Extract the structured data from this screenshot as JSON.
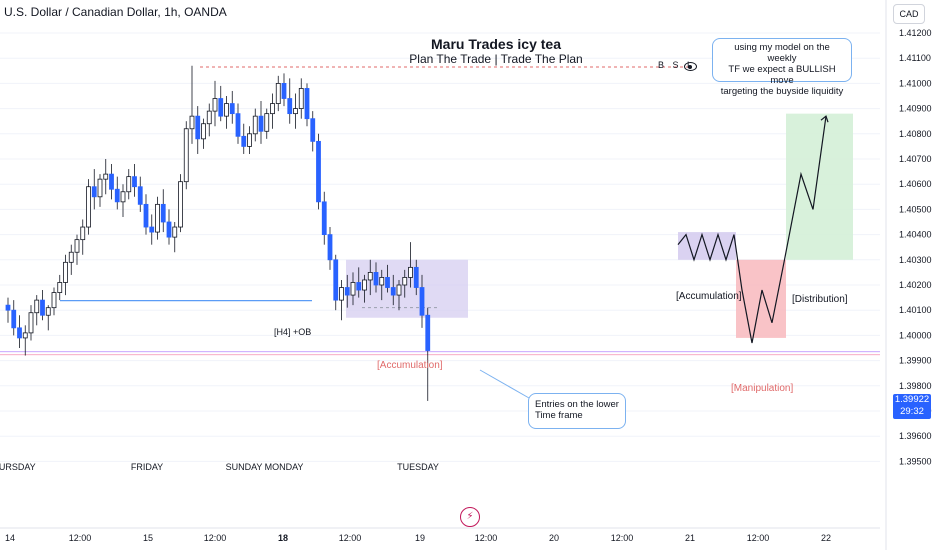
{
  "header": {
    "symbol_title": "U.S. Dollar / Canadian Dollar, 1h, OANDA",
    "currency_button": "CAD"
  },
  "idea": {
    "title": "Maru Trades icy tea",
    "subtitle": "Plan The Trade | Trade The Plan"
  },
  "annotations": {
    "bsl": "B S L",
    "top_callout": [
      "using my model on the weekly",
      "TF  we expect a BULLISH move",
      "targeting the buyside liquidity"
    ],
    "entry_callout": [
      "Entries on the lower",
      "Time frame"
    ],
    "ob_label": "[H4] +OB",
    "accumulation_mid": "[Accumulation]",
    "accumulation_side": "[Accumulation]",
    "manipulation": "[Manipulation]",
    "distribution": "[Distribution]"
  },
  "price_tag": {
    "price": "1.39922",
    "countdown": "29:32"
  },
  "colors": {
    "bull_candle": "#ffffff",
    "bear_candle": "#2962ff",
    "accumulation_zone": "#d6cdf0",
    "manipulation_zone": "#f8b9bd",
    "distribution_zone": "#d4efd7",
    "ob_line": "#5b9cf6",
    "accent_red": "#e06a6a"
  },
  "chart_data": {
    "type": "candlestick",
    "title": "U.S. Dollar / Canadian Dollar, 1h, OANDA",
    "y_axis_labels": [
      "1.41200",
      "1.41100",
      "1.41000",
      "1.40900",
      "1.40800",
      "1.40700",
      "1.40600",
      "1.40500",
      "1.40400",
      "1.40300",
      "1.40200",
      "1.40100",
      "1.40000",
      "1.39900",
      "1.39800",
      "1.39700",
      "1.39600",
      "1.39500"
    ],
    "ylim": [
      1.3949,
      1.4128
    ],
    "x_axis_labels": [
      "14",
      "12:00",
      "15",
      "12:00",
      "18",
      "12:00",
      "19",
      "12:00",
      "20",
      "12:00",
      "21",
      "12:00",
      "22"
    ],
    "session_labels": [
      "HURSDAY",
      "FRIDAY",
      "SUNDAY",
      "MONDAY",
      "TUESDAY"
    ],
    "last_price": 1.39922,
    "levels": {
      "bsl": 1.41065,
      "ob": 1.40138,
      "price_line": 1.39935
    },
    "ohlc": [
      [
        1.4012,
        1.4015,
        1.4005,
        1.401
      ],
      [
        1.401,
        1.4014,
        1.4,
        1.4003
      ],
      [
        1.4003,
        1.4008,
        1.3995,
        1.3999
      ],
      [
        1.3999,
        1.4004,
        1.3992,
        1.4001
      ],
      [
        1.4001,
        1.4012,
        1.3998,
        1.4009
      ],
      [
        1.4009,
        1.4016,
        1.4004,
        1.4014
      ],
      [
        1.4014,
        1.4018,
        1.4006,
        1.4008
      ],
      [
        1.4008,
        1.4012,
        1.4002,
        1.4011
      ],
      [
        1.4011,
        1.4019,
        1.4008,
        1.4017
      ],
      [
        1.4017,
        1.4024,
        1.4014,
        1.4021
      ],
      [
        1.4021,
        1.4032,
        1.4016,
        1.4029
      ],
      [
        1.4029,
        1.4036,
        1.4024,
        1.4033
      ],
      [
        1.4033,
        1.404,
        1.4028,
        1.4038
      ],
      [
        1.4038,
        1.4046,
        1.4032,
        1.4043
      ],
      [
        1.4043,
        1.4062,
        1.404,
        1.4059
      ],
      [
        1.4059,
        1.4066,
        1.405,
        1.4055
      ],
      [
        1.4055,
        1.4064,
        1.4051,
        1.4062
      ],
      [
        1.4062,
        1.407,
        1.4056,
        1.4064
      ],
      [
        1.4064,
        1.4068,
        1.4054,
        1.4058
      ],
      [
        1.4058,
        1.4063,
        1.405,
        1.4053
      ],
      [
        1.4053,
        1.406,
        1.4047,
        1.4057
      ],
      [
        1.4057,
        1.4066,
        1.4054,
        1.4063
      ],
      [
        1.4063,
        1.4068,
        1.4055,
        1.4059
      ],
      [
        1.4059,
        1.4063,
        1.4049,
        1.4052
      ],
      [
        1.4052,
        1.4056,
        1.404,
        1.4043
      ],
      [
        1.4043,
        1.4048,
        1.4036,
        1.4041
      ],
      [
        1.4041,
        1.4055,
        1.4038,
        1.4052
      ],
      [
        1.4052,
        1.4058,
        1.4041,
        1.4045
      ],
      [
        1.4045,
        1.405,
        1.4036,
        1.4039
      ],
      [
        1.4039,
        1.4045,
        1.4033,
        1.4043
      ],
      [
        1.4043,
        1.4064,
        1.4041,
        1.4061
      ],
      [
        1.4061,
        1.4085,
        1.4058,
        1.4082
      ],
      [
        1.4082,
        1.4107,
        1.4076,
        1.4087
      ],
      [
        1.4087,
        1.4091,
        1.4072,
        1.4078
      ],
      [
        1.4078,
        1.4086,
        1.4074,
        1.4084
      ],
      [
        1.4084,
        1.4092,
        1.4079,
        1.4089
      ],
      [
        1.4089,
        1.4101,
        1.4083,
        1.4094
      ],
      [
        1.4094,
        1.4099,
        1.4085,
        1.4087
      ],
      [
        1.4087,
        1.4095,
        1.4082,
        1.4092
      ],
      [
        1.4092,
        1.4097,
        1.4084,
        1.4088
      ],
      [
        1.4088,
        1.4092,
        1.4076,
        1.4079
      ],
      [
        1.4079,
        1.4084,
        1.4072,
        1.4075
      ],
      [
        1.4075,
        1.4083,
        1.4072,
        1.408
      ],
      [
        1.408,
        1.409,
        1.4077,
        1.4087
      ],
      [
        1.4087,
        1.4093,
        1.4076,
        1.4081
      ],
      [
        1.4081,
        1.409,
        1.4078,
        1.4088
      ],
      [
        1.4088,
        1.4096,
        1.4082,
        1.4092
      ],
      [
        1.4092,
        1.4103,
        1.4089,
        1.41
      ],
      [
        1.41,
        1.4104,
        1.4091,
        1.4094
      ],
      [
        1.4094,
        1.4102,
        1.4084,
        1.4088
      ],
      [
        1.4088,
        1.4096,
        1.4082,
        1.409
      ],
      [
        1.409,
        1.4102,
        1.4086,
        1.4098
      ],
      [
        1.4098,
        1.41,
        1.4083,
        1.4086
      ],
      [
        1.4086,
        1.4089,
        1.4073,
        1.4077
      ],
      [
        1.4077,
        1.408,
        1.405,
        1.4053
      ],
      [
        1.4053,
        1.4057,
        1.4036,
        1.404
      ],
      [
        1.404,
        1.4043,
        1.4026,
        1.403
      ],
      [
        1.403,
        1.4032,
        1.401,
        1.4014
      ],
      [
        1.4014,
        1.4022,
        1.4006,
        1.4019
      ],
      [
        1.4019,
        1.4024,
        1.4011,
        1.4016
      ],
      [
        1.4016,
        1.4025,
        1.4012,
        1.4021
      ],
      [
        1.4021,
        1.4027,
        1.4015,
        1.4018
      ],
      [
        1.4018,
        1.4024,
        1.4013,
        1.4022
      ],
      [
        1.4022,
        1.403,
        1.4016,
        1.4025
      ],
      [
        1.4025,
        1.4029,
        1.4017,
        1.402
      ],
      [
        1.402,
        1.4026,
        1.4014,
        1.4023
      ],
      [
        1.4023,
        1.4028,
        1.4017,
        1.4019
      ],
      [
        1.4019,
        1.4024,
        1.4012,
        1.4016
      ],
      [
        1.4016,
        1.4022,
        1.401,
        1.402
      ],
      [
        1.402,
        1.4026,
        1.4015,
        1.4023
      ],
      [
        1.4023,
        1.4037,
        1.4019,
        1.4027
      ],
      [
        1.4027,
        1.403,
        1.4016,
        1.4019
      ],
      [
        1.4019,
        1.4024,
        1.4003,
        1.4008
      ],
      [
        1.4008,
        1.4011,
        1.3974,
        1.3994
      ]
    ],
    "model_path": {
      "points": [
        [
          0,
          1.4036
        ],
        [
          1,
          1.404
        ],
        [
          2,
          1.403
        ],
        [
          3,
          1.404
        ],
        [
          4,
          1.403
        ],
        [
          5,
          1.404
        ],
        [
          6,
          1.403
        ],
        [
          7,
          1.404
        ],
        [
          8,
          1.4018
        ],
        [
          9,
          1.3997
        ],
        [
          10,
          1.4018
        ],
        [
          11,
          1.4005
        ],
        [
          12,
          1.4029
        ],
        [
          13,
          1.4064
        ],
        [
          14,
          1.405
        ],
        [
          15,
          1.4087
        ]
      ]
    }
  }
}
